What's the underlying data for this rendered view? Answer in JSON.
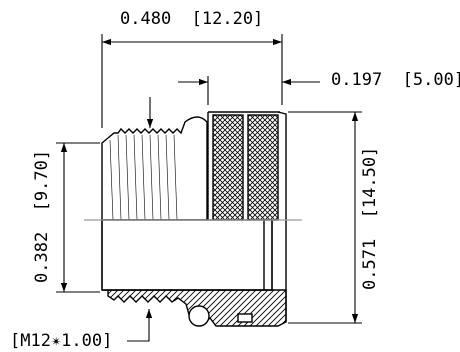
{
  "dimensions": {
    "overall_length": "0.480  [12.20]",
    "knurl_width": "0.197  [5.00]",
    "outer_diameter": "0.571  [14.50]",
    "thread_diameter": "0.382  [9.70]",
    "thread_spec": "[M12✴1.00]"
  },
  "colors": {
    "line": "#000000",
    "centerline": "#9a9a9a",
    "background": "#ffffff"
  }
}
